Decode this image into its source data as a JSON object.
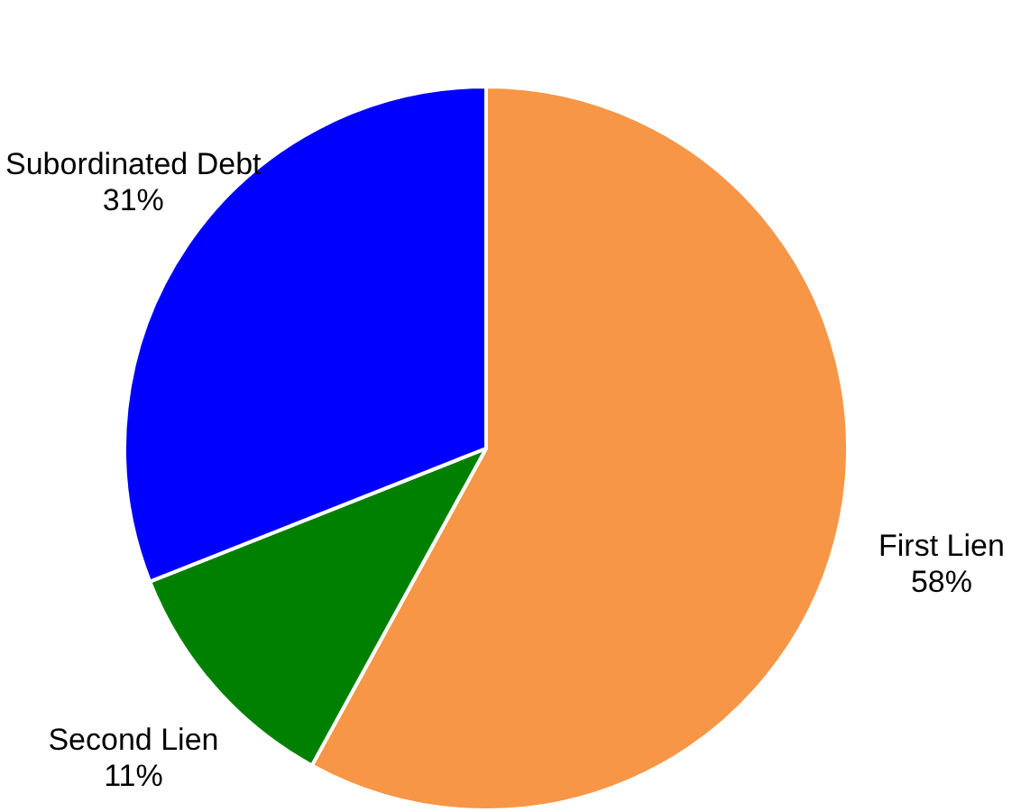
{
  "chart_data": {
    "type": "pie",
    "categories": [
      "First Lien",
      "Second Lien",
      "Subordinated Debt"
    ],
    "values": [
      58,
      11,
      31
    ],
    "colors": [
      "#f79646",
      "#008000",
      "#0000ff"
    ],
    "value_labels": [
      "58%",
      "11%",
      "31%"
    ],
    "legend": false
  }
}
